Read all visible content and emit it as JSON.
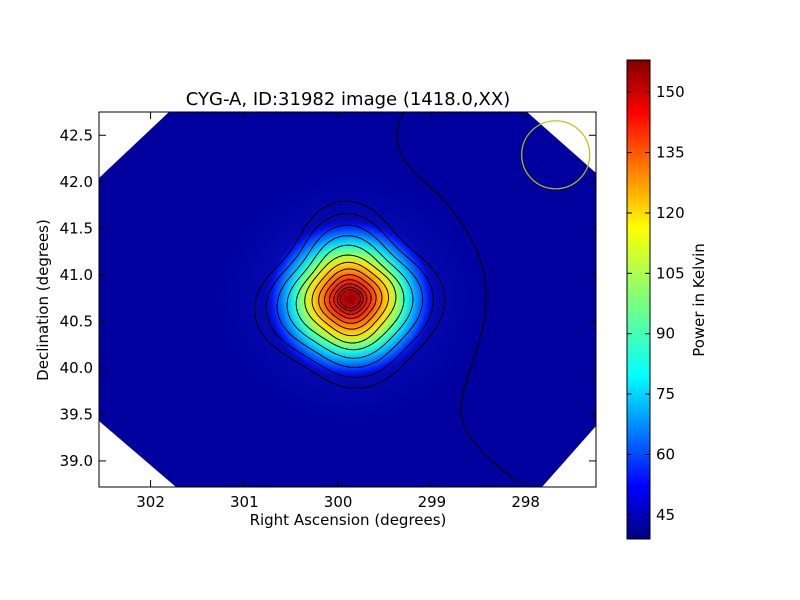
{
  "chart_data": {
    "type": "heatmap",
    "title": "CYG-A, ID:31982 image (1418.0,XX)",
    "xlabel": "Right Ascension (degrees)",
    "ylabel": "Declination (degrees)",
    "xlim": [
      302.55,
      297.25
    ],
    "ylim": [
      38.72,
      42.75
    ],
    "x_ticks": [
      302,
      301,
      300,
      299,
      298
    ],
    "y_ticks": [
      39.0,
      39.5,
      40.0,
      40.5,
      41.0,
      41.5,
      42.0,
      42.5
    ],
    "x_tick_labels": [
      "302",
      "301",
      "300",
      "299",
      "298"
    ],
    "y_tick_labels": [
      "39.0",
      "39.5",
      "40.0",
      "40.5",
      "41.0",
      "41.5",
      "42.0",
      "42.5"
    ],
    "source_peak": {
      "ra": 299.87,
      "dec": 40.74,
      "value": 157
    },
    "background_level": 42,
    "contour_count": 13,
    "beam": {
      "ra": 297.68,
      "dec": 42.29,
      "color": "#bfbf00"
    },
    "colorbar": {
      "label": "Power in Kelvin",
      "range": [
        39,
        158
      ],
      "ticks": [
        45,
        60,
        75,
        90,
        105,
        120,
        135,
        150
      ],
      "tick_labels": [
        "45",
        "60",
        "75",
        "90",
        "105",
        "120",
        "135",
        "150"
      ],
      "colormap": "jet"
    },
    "grid": false,
    "legend": "none"
  }
}
